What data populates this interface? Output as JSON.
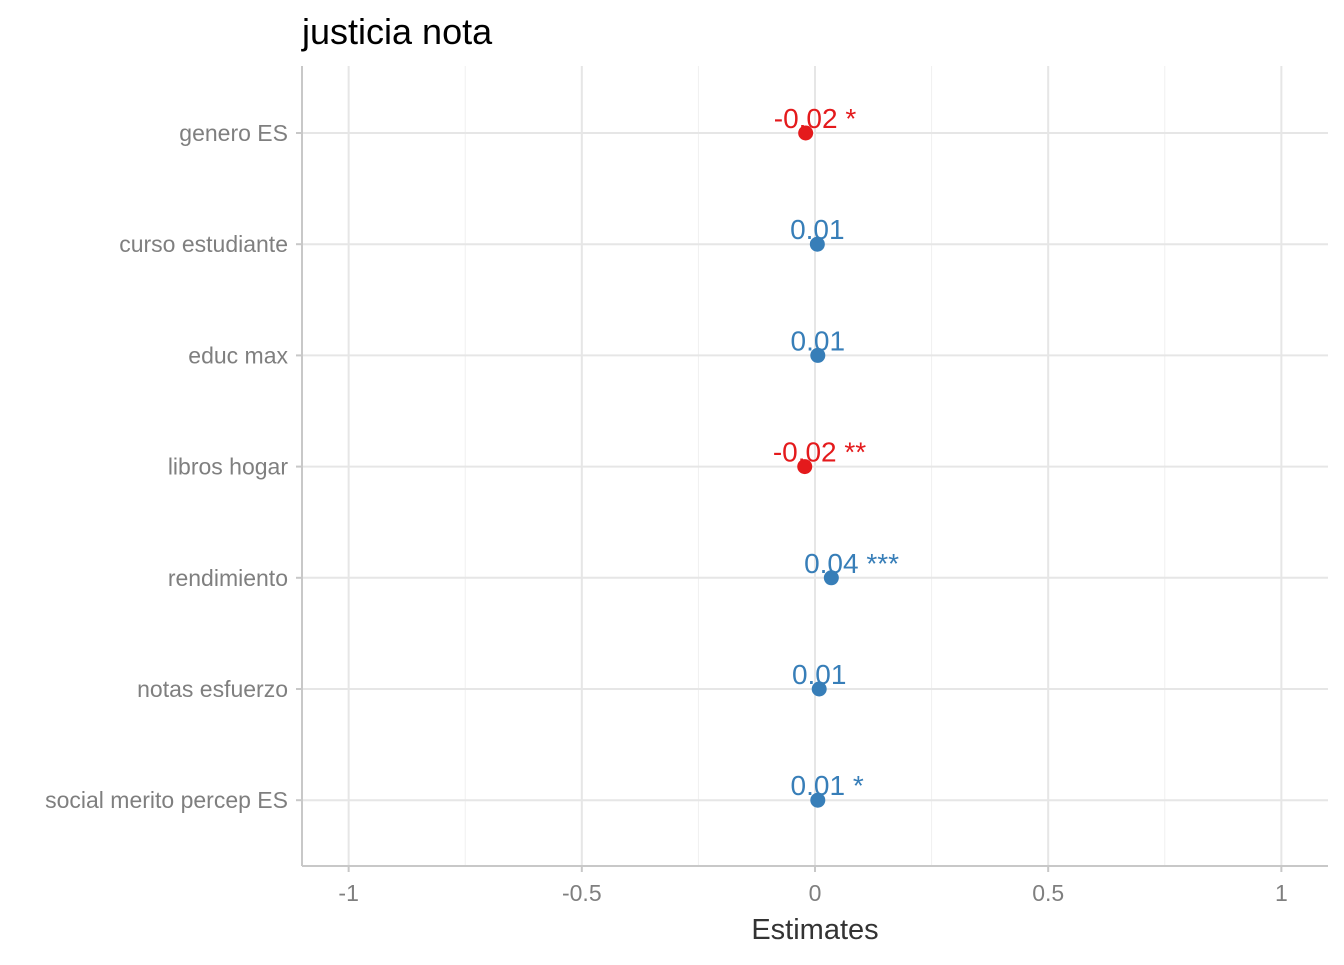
{
  "chart_data": {
    "type": "scatter",
    "title": "justicia nota",
    "xlabel": "Estimates",
    "ylabel": "",
    "xlim": [
      -1.1,
      1.1
    ],
    "x_ticks": [
      -1,
      -0.5,
      0,
      0.5,
      1
    ],
    "x_tick_labels": [
      "-1",
      "-0.5",
      "0",
      "0.5",
      "1"
    ],
    "grid": true,
    "categories": [
      "genero ES",
      "curso estudiante",
      "educ max",
      "libros hogar",
      "rendimiento",
      "notas esfuerzo",
      "social merito percep ES"
    ],
    "estimates": [
      -0.02,
      0.005,
      0.006,
      -0.022,
      0.035,
      0.009,
      0.006
    ],
    "labels": [
      "-0.02 *",
      "0.01",
      "0.01",
      "-0.02 **",
      "0.04 ***",
      "0.01",
      "0.01 *"
    ],
    "colors": {
      "negative": "#e41a1c",
      "positive": "#377eb8"
    }
  }
}
